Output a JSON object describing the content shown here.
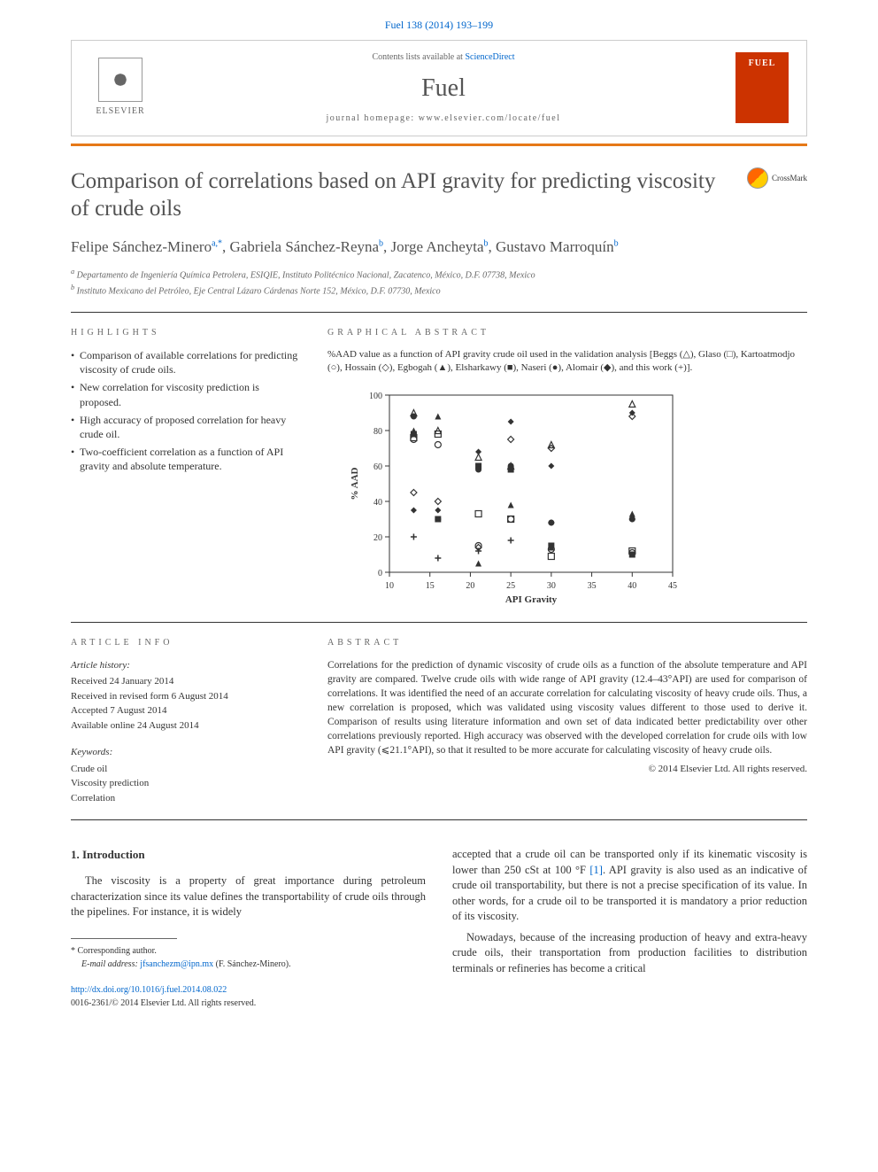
{
  "citation": "Fuel 138 (2014) 193–199",
  "header": {
    "contents_prefix": "Contents lists available at ",
    "contents_link": "ScienceDirect",
    "journal": "Fuel",
    "homepage_prefix": "journal homepage: ",
    "homepage_url": "www.elsevier.com/locate/fuel",
    "publisher": "ELSEVIER",
    "cover_text": "FUEL"
  },
  "title": "Comparison of correlations based on API gravity for predicting viscosity of crude oils",
  "crossmark": "CrossMark",
  "authors": {
    "a1_name": "Felipe Sánchez-Minero",
    "a1_sup": "a,",
    "a1_star": "*",
    "a2_name": "Gabriela Sánchez-Reyna",
    "a2_sup": "b",
    "a3_name": "Jorge Ancheyta",
    "a3_sup": "b",
    "a4_name": "Gustavo Marroquín",
    "a4_sup": "b"
  },
  "affiliations": {
    "a": "Departamento de Ingeniería Química Petrolera, ESIQIE, Instituto Politécnico Nacional, Zacatenco, México, D.F. 07738, Mexico",
    "b": "Instituto Mexicano del Petróleo, Eje Central Lázaro Cárdenas Norte 152, México, D.F. 07730, Mexico"
  },
  "highlights": {
    "head": "HIGHLIGHTS",
    "items": [
      "Comparison of available correlations for predicting viscosity of crude oils.",
      "New correlation for viscosity prediction is proposed.",
      "High accuracy of proposed correlation for heavy crude oil.",
      "Two-coefficient correlation as a function of API gravity and absolute temperature."
    ]
  },
  "graphical": {
    "head": "GRAPHICAL ABSTRACT",
    "caption": "%AAD value as a function of API gravity crude oil used in the validation analysis [Beggs (△), Glaso (□), Kartoatmodjo (○), Hossain (◇), Egbogah (▲), Elsharkawy (■), Naseri (●), Alomair (◆), and this work (+)].",
    "chart": {
      "type": "scatter",
      "xlabel": "API Gravity",
      "ylabel": "% AAD",
      "xlim": [
        10,
        45
      ],
      "ylim": [
        0,
        100
      ],
      "xticks": [
        10,
        15,
        20,
        25,
        30,
        35,
        40,
        45
      ],
      "yticks": [
        0,
        20,
        40,
        60,
        80,
        100
      ],
      "label_fontsize": 11,
      "tick_fontsize": 10,
      "background_color": "#ffffff",
      "border_color": "#333333",
      "grid": false,
      "marker_size": 7,
      "series": [
        {
          "name": "Beggs",
          "marker": "triangle-open",
          "color": "#333333",
          "points": [
            [
              13,
              90
            ],
            [
              16,
              80
            ],
            [
              21,
              65
            ],
            [
              25,
              60
            ],
            [
              30,
              72
            ],
            [
              40,
              95
            ]
          ]
        },
        {
          "name": "Glaso",
          "marker": "square-open",
          "color": "#333333",
          "points": [
            [
              13,
              76
            ],
            [
              16,
              78
            ],
            [
              21,
              33
            ],
            [
              25,
              30
            ],
            [
              30,
              9
            ],
            [
              40,
              12
            ]
          ]
        },
        {
          "name": "Kartoatmodjo",
          "marker": "circle-open",
          "color": "#333333",
          "points": [
            [
              13,
              75
            ],
            [
              16,
              72
            ],
            [
              21,
              15
            ],
            [
              25,
              30
            ],
            [
              30,
              13
            ],
            [
              40,
              11
            ]
          ]
        },
        {
          "name": "Hossain",
          "marker": "diamond-open",
          "color": "#333333",
          "points": [
            [
              13,
              45
            ],
            [
              16,
              40
            ],
            [
              21,
              14
            ],
            [
              25,
              75
            ],
            [
              30,
              70
            ],
            [
              40,
              88
            ]
          ]
        },
        {
          "name": "Egbogah",
          "marker": "triangle",
          "color": "#333333",
          "points": [
            [
              13,
              80
            ],
            [
              16,
              88
            ],
            [
              21,
              5
            ],
            [
              25,
              38
            ],
            [
              30,
              14
            ],
            [
              40,
              33
            ]
          ]
        },
        {
          "name": "Elsharkawy",
          "marker": "square",
          "color": "#333333",
          "points": [
            [
              13,
              78
            ],
            [
              16,
              30
            ],
            [
              21,
              60
            ],
            [
              25,
              58
            ],
            [
              30,
              15
            ],
            [
              40,
              10
            ]
          ]
        },
        {
          "name": "Naseri",
          "marker": "circle",
          "color": "#333333",
          "points": [
            [
              13,
              88
            ],
            [
              16,
              30
            ],
            [
              21,
              58
            ],
            [
              25,
              60
            ],
            [
              30,
              28
            ],
            [
              40,
              30
            ]
          ]
        },
        {
          "name": "Alomair",
          "marker": "diamond",
          "color": "#333333",
          "points": [
            [
              13,
              35
            ],
            [
              16,
              35
            ],
            [
              21,
              68
            ],
            [
              25,
              85
            ],
            [
              30,
              60
            ],
            [
              40,
              90
            ]
          ]
        },
        {
          "name": "This work",
          "marker": "plus",
          "color": "#333333",
          "points": [
            [
              13,
              20
            ],
            [
              16,
              8
            ],
            [
              21,
              12
            ],
            [
              25,
              18
            ],
            [
              30,
              28
            ],
            [
              40,
              30
            ]
          ]
        }
      ]
    }
  },
  "article_info": {
    "head": "ARTICLE INFO",
    "history_head": "Article history:",
    "received": "Received 24 January 2014",
    "revised": "Received in revised form 6 August 2014",
    "accepted": "Accepted 7 August 2014",
    "online": "Available online 24 August 2014",
    "keywords_head": "Keywords:",
    "keywords": [
      "Crude oil",
      "Viscosity prediction",
      "Correlation"
    ]
  },
  "abstract": {
    "head": "ABSTRACT",
    "text": "Correlations for the prediction of dynamic viscosity of crude oils as a function of the absolute temperature and API gravity are compared. Twelve crude oils with wide range of API gravity (12.4–43°API) are used for comparison of correlations. It was identified the need of an accurate correlation for calculating viscosity of heavy crude oils. Thus, a new correlation is proposed, which was validated using viscosity values different to those used to derive it. Comparison of results using literature information and own set of data indicated better predictability over other correlations previously reported. High accuracy was observed with the developed correlation for crude oils with low API gravity (⩽21.1°API), so that it resulted to be more accurate for calculating viscosity of heavy crude oils.",
    "copyright": "© 2014 Elsevier Ltd. All rights reserved."
  },
  "introduction": {
    "head": "1. Introduction",
    "p1": "The viscosity is a property of great importance during petroleum characterization since its value defines the transportability of crude oils through the pipelines. For instance, it is widely",
    "p2_a": "accepted that a crude oil can be transported only if its kinematic viscosity is lower than 250 cSt at 100 °F ",
    "p2_ref": "[1]",
    "p2_b": ". API gravity is also used as an indicative of crude oil transportability, but there is not a precise specification of its value. In other words, for a crude oil to be transported it is mandatory a prior reduction of its viscosity.",
    "p3": "Nowadays, because of the increasing production of heavy and extra-heavy crude oils, their transportation from production facilities to distribution terminals or refineries has become a critical"
  },
  "footnote": {
    "corr_label": "Corresponding author.",
    "email_label": "E-mail address: ",
    "email": "jfsanchezm@ipn.mx",
    "email_name": " (F. Sánchez-Minero)."
  },
  "doi": {
    "url": "http://dx.doi.org/10.1016/j.fuel.2014.08.022",
    "issn": "0016-2361/© 2014 Elsevier Ltd. All rights reserved."
  }
}
